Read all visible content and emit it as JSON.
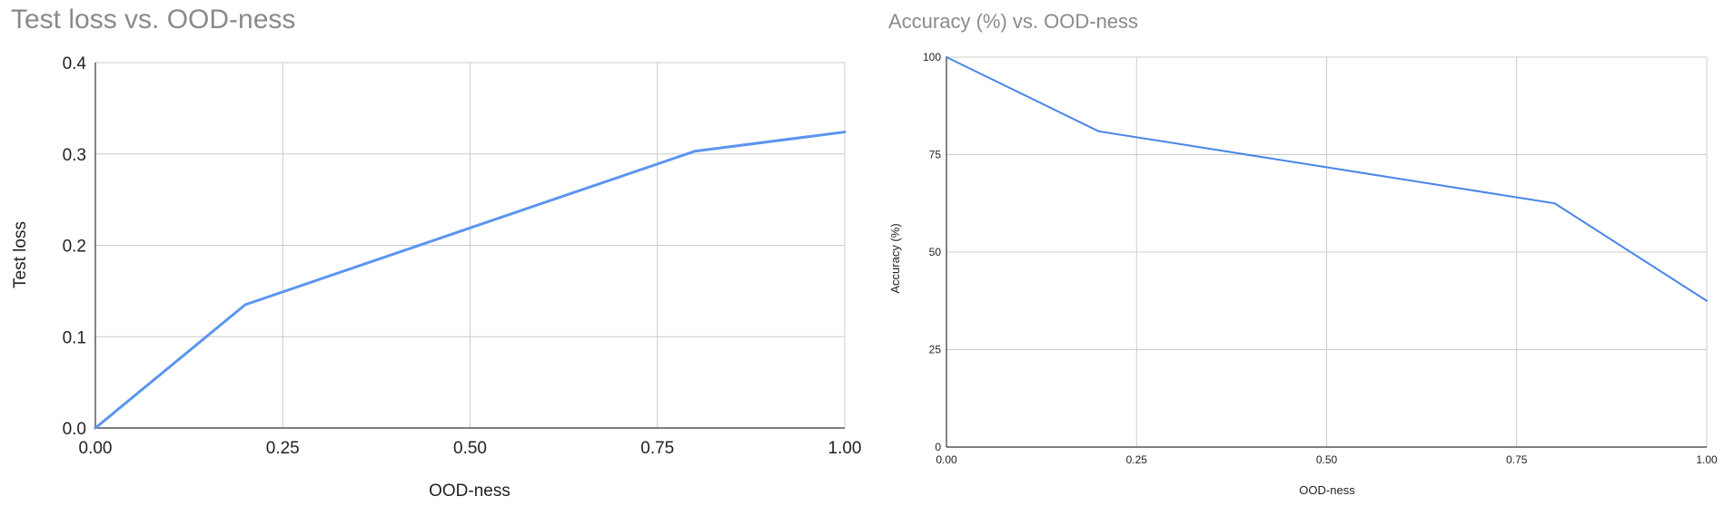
{
  "chart_data": [
    {
      "type": "line",
      "title": "Test loss vs. OOD-ness",
      "xlabel": "OOD-ness",
      "ylabel": "Test loss",
      "x": [
        0.0,
        0.2,
        0.8,
        1.0
      ],
      "series": [
        {
          "values": [
            0.0,
            0.135,
            0.303,
            0.324
          ],
          "color": "#5b95f0"
        }
      ],
      "xlim": [
        0.0,
        1.0
      ],
      "ylim": [
        0.0,
        0.4
      ],
      "xticks": [
        "0.00",
        "0.25",
        "0.50",
        "0.75",
        "1.00"
      ],
      "yticks": [
        "0.0",
        "0.1",
        "0.2",
        "0.3",
        "0.4"
      ],
      "grid": true,
      "legend": "none"
    },
    {
      "type": "line",
      "title": "Accuracy (%) vs. OOD-ness",
      "xlabel": "OOD-ness",
      "ylabel": "Accuracy (%)",
      "x": [
        0.0,
        0.2,
        0.8,
        1.0
      ],
      "series": [
        {
          "values": [
            100,
            81,
            62.5,
            37.5
          ],
          "color": "#4a86e8"
        }
      ],
      "xlim": [
        0.0,
        1.0
      ],
      "ylim": [
        0,
        100
      ],
      "xticks": [
        "0.00",
        "0.25",
        "0.50",
        "0.75",
        "1.00"
      ],
      "yticks": [
        "0",
        "25",
        "50",
        "75",
        "100"
      ],
      "grid": true,
      "legend": "none"
    }
  ]
}
